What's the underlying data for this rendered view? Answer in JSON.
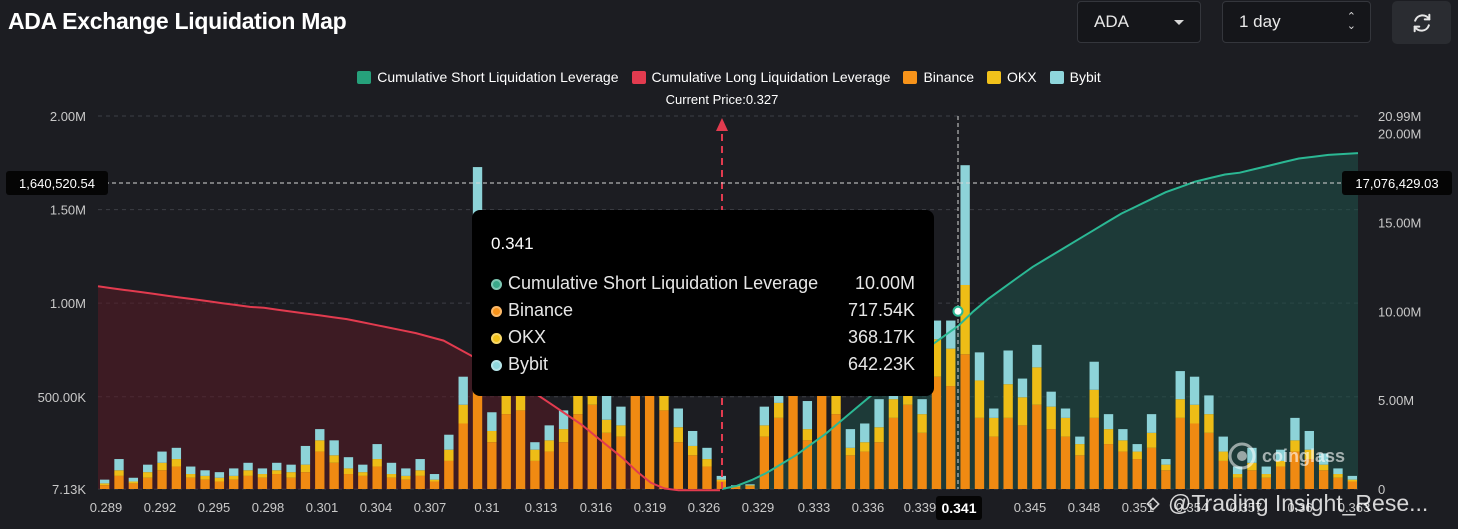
{
  "header": {
    "title": "ADA Exchange Liquidation Map",
    "symbol_value": "ADA",
    "interval_value": "1 day",
    "refresh_icon": "refresh-icon"
  },
  "legend": [
    {
      "label": "Cumulative Short Liquidation Leverage",
      "color": "#26a17b"
    },
    {
      "label": "Cumulative Long Liquidation Leverage",
      "color": "#e23b4f"
    },
    {
      "label": "Binance",
      "color": "#f7931a"
    },
    {
      "label": "OKX",
      "color": "#f2c21b"
    },
    {
      "label": "Bybit",
      "color": "#8fd6dc"
    }
  ],
  "current_price_label": "Current Price:0.327",
  "crosshair": {
    "left_value": "1,640,520.54",
    "right_value": "17,076,429.03",
    "x_value": "0.341"
  },
  "tooltip": {
    "title": "0.341",
    "rows": [
      {
        "name": "Cumulative Short Liquidation Leverage",
        "value": "10.00M",
        "color": "#3aa889"
      },
      {
        "name": "Binance",
        "value": "717.54K",
        "color": "#f7931a"
      },
      {
        "name": "OKX",
        "value": "368.17K",
        "color": "#f2c21b"
      },
      {
        "name": "Bybit",
        "value": "642.23K",
        "color": "#8fd6dc"
      }
    ]
  },
  "watermarks": {
    "logo": "coinglass",
    "credit": "@Trading Insight_Rese..."
  },
  "chart_data": {
    "type": "bar",
    "y_left": {
      "ticks": [
        "7.13K",
        "500.00K",
        "1.00M",
        "1.50M",
        "2.00M"
      ],
      "tick_values": [
        7130,
        500000,
        1000000,
        1500000,
        2000000
      ],
      "range": [
        7130,
        2000000
      ]
    },
    "y_right": {
      "ticks": [
        "0",
        "5.00M",
        "10.00M",
        "15.00M",
        "20.00M",
        "20.99M"
      ],
      "tick_values": [
        0,
        5000000,
        10000000,
        15000000,
        20000000,
        20990000
      ],
      "range": [
        0,
        20990000
      ]
    },
    "x_ticks": [
      "0.289",
      "0.292",
      "0.295",
      "0.298",
      "0.301",
      "0.304",
      "0.307",
      "0.31",
      "0.313",
      "0.316",
      "0.319",
      "0.326",
      "0.329",
      "0.333",
      "0.336",
      "0.339",
      "0.341",
      "0.345",
      "0.348",
      "0.351",
      "0.354",
      "0.357",
      "0.36",
      "0.363"
    ],
    "current_price": 0.327,
    "bars": {
      "binance": [
        20000,
        70000,
        30000,
        60000,
        100000,
        120000,
        60000,
        50000,
        40000,
        50000,
        70000,
        60000,
        80000,
        60000,
        90000,
        200000,
        140000,
        80000,
        70000,
        120000,
        60000,
        50000,
        70000,
        40000,
        150000,
        350000,
        600000,
        250000,
        400000,
        420000,
        150000,
        200000,
        250000,
        400000,
        450000,
        300000,
        280000,
        650000,
        500000,
        420000,
        250000,
        180000,
        120000,
        40000,
        10000,
        15000,
        280000,
        380000,
        600000,
        260000,
        500000,
        400000,
        180000,
        200000,
        250000,
        380000,
        450000,
        300000,
        600000,
        550000,
        720000,
        380000,
        280000,
        380000,
        340000,
        450000,
        320000,
        280000,
        180000,
        380000,
        240000,
        200000,
        160000,
        220000,
        100000,
        380000,
        350000,
        300000,
        150000,
        60000,
        100000,
        60000,
        120000,
        200000,
        160000,
        100000,
        60000,
        40000
      ],
      "okx": [
        10000,
        30000,
        10000,
        30000,
        40000,
        40000,
        20000,
        20000,
        20000,
        20000,
        30000,
        20000,
        20000,
        30000,
        40000,
        60000,
        40000,
        30000,
        20000,
        40000,
        20000,
        20000,
        30000,
        10000,
        60000,
        100000,
        120000,
        60000,
        100000,
        100000,
        60000,
        60000,
        70000,
        100000,
        100000,
        70000,
        60000,
        150000,
        150000,
        100000,
        80000,
        50000,
        40000,
        10000,
        5000,
        5000,
        60000,
        80000,
        120000,
        60000,
        120000,
        100000,
        40000,
        50000,
        80000,
        100000,
        150000,
        100000,
        200000,
        200000,
        370000,
        200000,
        100000,
        180000,
        150000,
        200000,
        120000,
        100000,
        60000,
        150000,
        80000,
        60000,
        40000,
        80000,
        30000,
        100000,
        100000,
        100000,
        50000,
        20000,
        40000,
        20000,
        30000,
        60000,
        50000,
        30000,
        20000,
        10000
      ],
      "bybit": [
        20000,
        60000,
        20000,
        40000,
        60000,
        60000,
        40000,
        30000,
        30000,
        40000,
        40000,
        30000,
        40000,
        40000,
        100000,
        60000,
        80000,
        60000,
        40000,
        80000,
        60000,
        40000,
        60000,
        30000,
        80000,
        150000,
        1000000,
        100000,
        250000,
        300000,
        40000,
        80000,
        100000,
        200000,
        200000,
        150000,
        100000,
        250000,
        250000,
        200000,
        100000,
        80000,
        60000,
        20000,
        5000,
        5000,
        100000,
        150000,
        600000,
        150000,
        200000,
        200000,
        100000,
        100000,
        150000,
        200000,
        150000,
        80000,
        100000,
        150000,
        640000,
        150000,
        50000,
        180000,
        100000,
        120000,
        80000,
        50000,
        40000,
        150000,
        80000,
        60000,
        40000,
        100000,
        30000,
        150000,
        150000,
        100000,
        80000,
        40000,
        80000,
        40000,
        60000,
        120000,
        100000,
        60000,
        30000,
        20000
      ]
    },
    "cumulative_long": [
      1090000,
      1080000,
      1070000,
      1060000,
      1050000,
      1040000,
      1030000,
      1020000,
      1010000,
      1000000,
      990000,
      980000,
      975000,
      965000,
      955000,
      945000,
      935000,
      925000,
      915000,
      900000,
      885000,
      870000,
      855000,
      840000,
      820000,
      800000,
      760000,
      720000,
      680000,
      640000,
      600000,
      550000,
      500000,
      450000,
      400000,
      350000,
      290000,
      230000,
      170000,
      100000,
      40000,
      10000,
      0,
      0,
      0,
      0
    ],
    "cumulative_short": [
      0,
      180000,
      500000,
      900000,
      1400000,
      1900000,
      2500000,
      3100000,
      3800000,
      4500000,
      5200000,
      5900000,
      6600000,
      7300000,
      8000000,
      8600000,
      9200000,
      10000000,
      10700000,
      11300000,
      11900000,
      12500000,
      13000000,
      13500000,
      14000000,
      14500000,
      15000000,
      15500000,
      15900000,
      16300000,
      16700000,
      17000000,
      17300000,
      17500000,
      17700000,
      17800000,
      18000000,
      18200000,
      18400000,
      18600000,
      18700000,
      18800000,
      18850000,
      18900000
    ]
  }
}
